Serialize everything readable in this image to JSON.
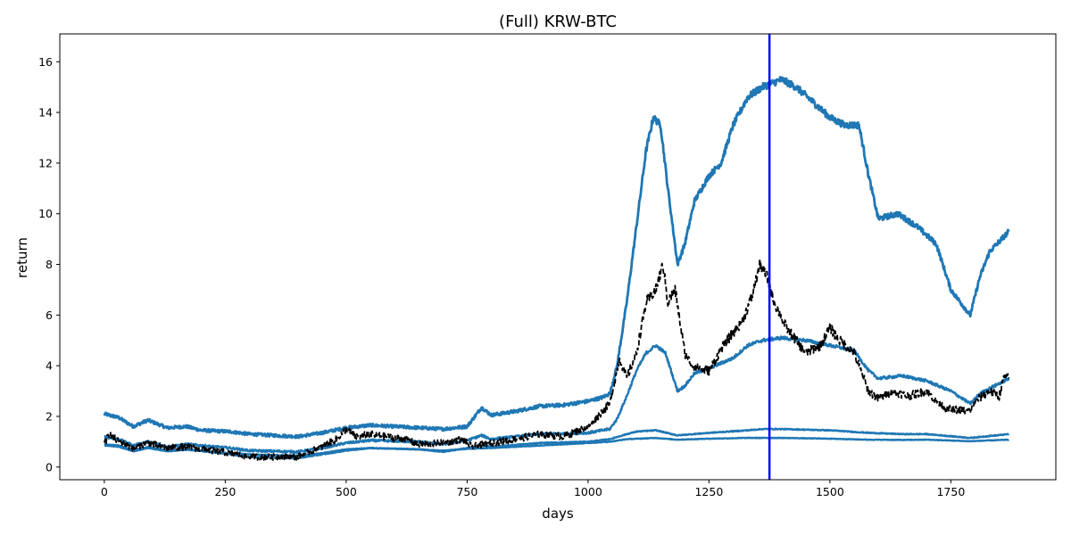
{
  "chart_data": {
    "type": "line",
    "title": "(Full) KRW-BTC",
    "xlabel": "days",
    "ylabel": "return",
    "xlim": [
      -92,
      1967
    ],
    "ylim": [
      -0.5,
      17.1
    ],
    "xticks": [
      0,
      250,
      500,
      750,
      1000,
      1250,
      1500,
      1750
    ],
    "yticks": [
      0,
      2,
      4,
      6,
      8,
      10,
      12,
      14,
      16
    ],
    "grid": false,
    "legend": "none",
    "vline": {
      "x": 1375,
      "color": "#0000ff"
    },
    "colors": {
      "series": "#1f77b4",
      "benchmark": "#000000",
      "vline": "#0000ff"
    },
    "series": [
      {
        "style": "solid",
        "noise": 0.05,
        "points": [
          [
            0,
            2.1
          ],
          [
            30,
            1.95
          ],
          [
            60,
            1.6
          ],
          [
            90,
            1.85
          ],
          [
            130,
            1.55
          ],
          [
            170,
            1.6
          ],
          [
            200,
            1.45
          ],
          [
            260,
            1.4
          ],
          [
            300,
            1.3
          ],
          [
            350,
            1.25
          ],
          [
            400,
            1.2
          ],
          [
            450,
            1.35
          ],
          [
            500,
            1.55
          ],
          [
            550,
            1.65
          ],
          [
            600,
            1.6
          ],
          [
            650,
            1.55
          ],
          [
            700,
            1.5
          ],
          [
            750,
            1.6
          ],
          [
            780,
            2.35
          ],
          [
            800,
            2.05
          ],
          [
            850,
            2.2
          ],
          [
            900,
            2.4
          ],
          [
            950,
            2.45
          ],
          [
            1000,
            2.6
          ],
          [
            1030,
            2.75
          ],
          [
            1045,
            2.9
          ],
          [
            1060,
            4.0
          ],
          [
            1080,
            6.5
          ],
          [
            1100,
            9.5
          ],
          [
            1120,
            12.5
          ],
          [
            1135,
            13.8
          ],
          [
            1150,
            13.5
          ],
          [
            1165,
            11.0
          ],
          [
            1185,
            8.0
          ],
          [
            1200,
            8.8
          ],
          [
            1220,
            10.5
          ],
          [
            1250,
            11.5
          ],
          [
            1275,
            12.0
          ],
          [
            1300,
            13.5
          ],
          [
            1330,
            14.6
          ],
          [
            1360,
            15.0
          ],
          [
            1400,
            15.3
          ],
          [
            1430,
            15.0
          ],
          [
            1460,
            14.5
          ],
          [
            1500,
            13.8
          ],
          [
            1530,
            13.5
          ],
          [
            1560,
            13.5
          ],
          [
            1580,
            11.5
          ],
          [
            1600,
            9.8
          ],
          [
            1640,
            10.0
          ],
          [
            1680,
            9.5
          ],
          [
            1720,
            8.8
          ],
          [
            1750,
            7.0
          ],
          [
            1790,
            6.0
          ],
          [
            1810,
            7.5
          ],
          [
            1830,
            8.5
          ],
          [
            1870,
            9.3
          ]
        ]
      },
      {
        "style": "solid",
        "noise": 0.04,
        "points": [
          [
            0,
            1.2
          ],
          [
            30,
            1.1
          ],
          [
            60,
            0.85
          ],
          [
            90,
            1.0
          ],
          [
            130,
            0.8
          ],
          [
            170,
            0.9
          ],
          [
            260,
            0.75
          ],
          [
            300,
            0.65
          ],
          [
            400,
            0.6
          ],
          [
            450,
            0.75
          ],
          [
            500,
            0.95
          ],
          [
            550,
            1.05
          ],
          [
            650,
            1.0
          ],
          [
            700,
            0.9
          ],
          [
            750,
            1.05
          ],
          [
            780,
            1.25
          ],
          [
            800,
            1.1
          ],
          [
            900,
            1.3
          ],
          [
            1000,
            1.35
          ],
          [
            1045,
            1.5
          ],
          [
            1060,
            1.9
          ],
          [
            1080,
            2.8
          ],
          [
            1100,
            3.8
          ],
          [
            1120,
            4.5
          ],
          [
            1140,
            4.8
          ],
          [
            1160,
            4.5
          ],
          [
            1185,
            3.0
          ],
          [
            1200,
            3.2
          ],
          [
            1220,
            3.7
          ],
          [
            1250,
            3.9
          ],
          [
            1300,
            4.3
          ],
          [
            1330,
            4.8
          ],
          [
            1360,
            5.0
          ],
          [
            1400,
            5.1
          ],
          [
            1450,
            5.0
          ],
          [
            1500,
            4.8
          ],
          [
            1550,
            4.6
          ],
          [
            1580,
            3.8
          ],
          [
            1600,
            3.5
          ],
          [
            1650,
            3.6
          ],
          [
            1700,
            3.4
          ],
          [
            1750,
            3.0
          ],
          [
            1790,
            2.5
          ],
          [
            1810,
            2.9
          ],
          [
            1840,
            3.2
          ],
          [
            1870,
            3.5
          ]
        ]
      },
      {
        "style": "solid",
        "noise": 0.015,
        "points": [
          [
            0,
            0.9
          ],
          [
            30,
            0.85
          ],
          [
            60,
            0.65
          ],
          [
            90,
            0.8
          ],
          [
            130,
            0.65
          ],
          [
            170,
            0.7
          ],
          [
            260,
            0.5
          ],
          [
            300,
            0.4
          ],
          [
            400,
            0.35
          ],
          [
            450,
            0.5
          ],
          [
            500,
            0.65
          ],
          [
            550,
            0.75
          ],
          [
            650,
            0.7
          ],
          [
            700,
            0.6
          ],
          [
            750,
            0.75
          ],
          [
            780,
            0.85
          ],
          [
            800,
            0.8
          ],
          [
            900,
            0.95
          ],
          [
            1000,
            1.0
          ],
          [
            1045,
            1.1
          ],
          [
            1080,
            1.3
          ],
          [
            1100,
            1.4
          ],
          [
            1140,
            1.45
          ],
          [
            1185,
            1.25
          ],
          [
            1250,
            1.35
          ],
          [
            1330,
            1.45
          ],
          [
            1360,
            1.5
          ],
          [
            1400,
            1.5
          ],
          [
            1500,
            1.45
          ],
          [
            1580,
            1.35
          ],
          [
            1650,
            1.3
          ],
          [
            1700,
            1.3
          ],
          [
            1790,
            1.15
          ],
          [
            1870,
            1.3
          ]
        ]
      },
      {
        "style": "solid",
        "noise": 0.01,
        "points": [
          [
            0,
            0.85
          ],
          [
            30,
            0.8
          ],
          [
            60,
            0.62
          ],
          [
            90,
            0.75
          ],
          [
            130,
            0.62
          ],
          [
            170,
            0.68
          ],
          [
            260,
            0.55
          ],
          [
            300,
            0.5
          ],
          [
            400,
            0.45
          ],
          [
            450,
            0.55
          ],
          [
            500,
            0.7
          ],
          [
            550,
            0.75
          ],
          [
            650,
            0.7
          ],
          [
            700,
            0.65
          ],
          [
            750,
            0.72
          ],
          [
            800,
            0.75
          ],
          [
            900,
            0.85
          ],
          [
            1000,
            0.95
          ],
          [
            1045,
            1.0
          ],
          [
            1080,
            1.1
          ],
          [
            1140,
            1.15
          ],
          [
            1185,
            1.08
          ],
          [
            1250,
            1.12
          ],
          [
            1330,
            1.15
          ],
          [
            1400,
            1.15
          ],
          [
            1500,
            1.12
          ],
          [
            1580,
            1.08
          ],
          [
            1650,
            1.07
          ],
          [
            1700,
            1.08
          ],
          [
            1790,
            1.02
          ],
          [
            1870,
            1.08
          ]
        ]
      },
      {
        "style": "dashed",
        "noise": 0.12,
        "points": [
          [
            0,
            0.9
          ],
          [
            10,
            1.3
          ],
          [
            30,
            1.0
          ],
          [
            60,
            0.75
          ],
          [
            90,
            0.95
          ],
          [
            130,
            0.75
          ],
          [
            170,
            0.8
          ],
          [
            260,
            0.55
          ],
          [
            300,
            0.4
          ],
          [
            400,
            0.4
          ],
          [
            450,
            0.8
          ],
          [
            480,
            1.1
          ],
          [
            500,
            1.5
          ],
          [
            520,
            1.2
          ],
          [
            550,
            1.3
          ],
          [
            580,
            1.2
          ],
          [
            620,
            1.1
          ],
          [
            650,
            0.9
          ],
          [
            700,
            0.95
          ],
          [
            740,
            1.1
          ],
          [
            760,
            0.8
          ],
          [
            800,
            0.95
          ],
          [
            850,
            1.1
          ],
          [
            900,
            1.3
          ],
          [
            950,
            1.2
          ],
          [
            1000,
            1.6
          ],
          [
            1030,
            2.2
          ],
          [
            1045,
            2.5
          ],
          [
            1065,
            4.3
          ],
          [
            1080,
            3.5
          ],
          [
            1100,
            4.5
          ],
          [
            1120,
            6.5
          ],
          [
            1140,
            7.0
          ],
          [
            1155,
            8.0
          ],
          [
            1165,
            6.5
          ],
          [
            1180,
            7.0
          ],
          [
            1200,
            4.5
          ],
          [
            1215,
            4.0
          ],
          [
            1230,
            3.9
          ],
          [
            1250,
            3.8
          ],
          [
            1280,
            4.8
          ],
          [
            1300,
            5.3
          ],
          [
            1320,
            5.8
          ],
          [
            1340,
            6.8
          ],
          [
            1355,
            8.0
          ],
          [
            1370,
            7.5
          ],
          [
            1385,
            6.5
          ],
          [
            1410,
            5.5
          ],
          [
            1430,
            5.0
          ],
          [
            1450,
            4.5
          ],
          [
            1480,
            4.8
          ],
          [
            1500,
            5.5
          ],
          [
            1520,
            5.0
          ],
          [
            1550,
            4.5
          ],
          [
            1560,
            4.0
          ],
          [
            1580,
            3.0
          ],
          [
            1600,
            2.7
          ],
          [
            1630,
            3.0
          ],
          [
            1660,
            2.8
          ],
          [
            1700,
            3.0
          ],
          [
            1720,
            2.6
          ],
          [
            1740,
            2.3
          ],
          [
            1790,
            2.2
          ],
          [
            1800,
            2.6
          ],
          [
            1830,
            3.0
          ],
          [
            1850,
            2.8
          ],
          [
            1860,
            3.6
          ],
          [
            1870,
            3.5
          ]
        ]
      }
    ]
  }
}
